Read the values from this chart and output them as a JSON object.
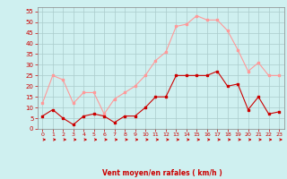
{
  "hours": [
    0,
    1,
    2,
    3,
    4,
    5,
    6,
    7,
    8,
    9,
    10,
    11,
    12,
    13,
    14,
    15,
    16,
    17,
    18,
    19,
    20,
    21,
    22,
    23
  ],
  "wind_avg": [
    6,
    9,
    5,
    2,
    6,
    7,
    6,
    3,
    6,
    6,
    10,
    15,
    15,
    25,
    25,
    25,
    25,
    27,
    20,
    21,
    9,
    15,
    7,
    8
  ],
  "wind_gust": [
    12,
    25,
    23,
    12,
    17,
    17,
    7,
    14,
    17,
    20,
    25,
    32,
    36,
    48,
    49,
    53,
    51,
    51,
    46,
    37,
    27,
    31,
    25,
    25
  ],
  "bg_color": "#cff0f0",
  "grid_color": "#aacccc",
  "avg_color": "#cc0000",
  "gust_color": "#ff9999",
  "xlabel": "Vent moyen/en rafales ( km/h )",
  "xlabel_color": "#cc0000",
  "tick_color": "#cc0000",
  "ylabel_ticks": [
    0,
    5,
    10,
    15,
    20,
    25,
    30,
    35,
    40,
    45,
    50,
    55
  ],
  "ylim": [
    0,
    57
  ],
  "xlim": [
    -0.5,
    23.5
  ]
}
